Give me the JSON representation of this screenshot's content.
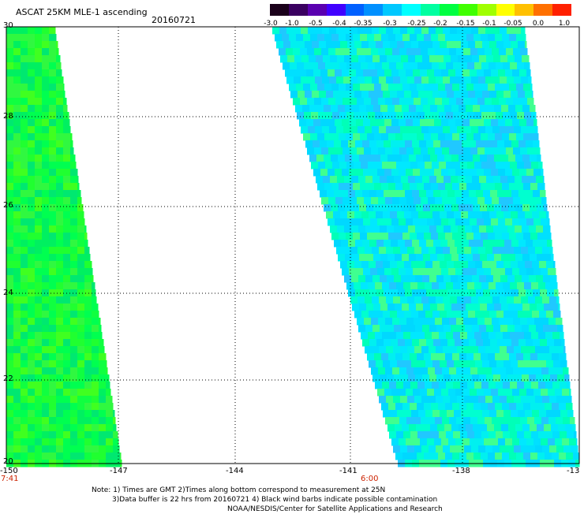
{
  "header": {
    "title": "ASCAT 25KM MLE-1 ascending",
    "date": "20160721"
  },
  "colorbar": {
    "labels": [
      "-3.0",
      "-1.0",
      "-0.5",
      "-0.4",
      "-0.35",
      "-0.3",
      "-0.25",
      "-0.2",
      "-0.15",
      "-0.1",
      "-0.05",
      "0.0",
      "1.0"
    ],
    "colors": [
      "#1a001a",
      "#3a0060",
      "#5a00b0",
      "#4000ff",
      "#0060ff",
      "#0090ff",
      "#00c8ff",
      "#00ffff",
      "#00ffa0",
      "#00ff40",
      "#40ff00",
      "#a0ff00",
      "#ffff00",
      "#ffc000",
      "#ff7000",
      "#ff2000"
    ]
  },
  "axes": {
    "lat_labels": [
      "30",
      "28",
      "26",
      "24",
      "22",
      "20"
    ],
    "lon_labels": [
      "-150",
      "-147",
      "-144",
      "-141",
      "-138",
      "-13"
    ],
    "times": [
      "7:41",
      "6:00"
    ]
  },
  "note": {
    "line1": "Note: 1) Times are GMT 2)Times along bottom correspond to measurement at 25N",
    "line2": "3)Data buffer is 22 hrs from 20160721 4) Black wind barbs indicate possible contamination",
    "line3": "NOAA/NESDIS/Center for Satellite Applications and Research"
  }
}
